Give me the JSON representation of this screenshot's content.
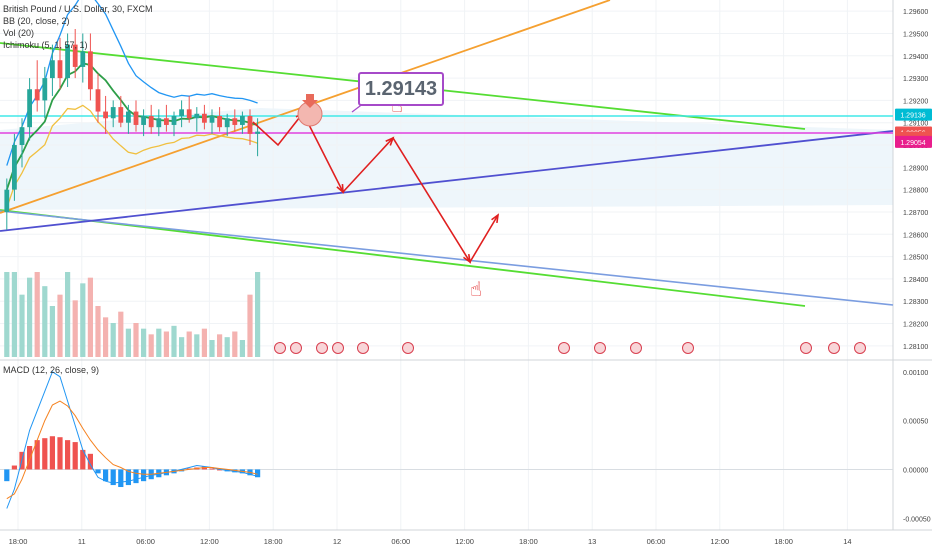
{
  "header": {
    "symbol_line": "British Pound / U.S. Dollar, 30, FXCM",
    "indicator_bb": "BB (20, close, 2)",
    "indicator_vol": "Vol (20)",
    "indicator_ichimoku": "Ichimoku (5, 1, 57, 1)"
  },
  "macd_header": "MACD (12, 26, close, 9)",
  "annotation": {
    "price_label": "1.29143"
  },
  "price_badges": [
    {
      "text": "1.29136",
      "color": "#00bcd4",
      "price": 1.29136
    },
    {
      "text": "1.29056",
      "color": "#ef5350",
      "price": 1.29056
    },
    {
      "text": "25:23",
      "color": "#ef5350",
      "price": 1.29032
    },
    {
      "text": "1.29054",
      "color": "#e91e8c",
      "price": 1.29014
    }
  ],
  "colors": {
    "bull": "#26a69a",
    "bear": "#ef5350",
    "bb": "#2196f3",
    "ichimoku": "#2e9e48",
    "ichimoku_base": "#f0c040",
    "trend_green": "#55dd33",
    "trend_orange": "#f5a030",
    "trend_blue": "#5050d0",
    "trend_lightblue": "#7b9de0",
    "support": "#e040e0",
    "resistance": "#40e8e8",
    "arrow": "#e02020",
    "macd_line": "#2196f3",
    "signal_line": "#f58220"
  },
  "chart_data": [
    {
      "type": "candlestick",
      "title": "British Pound / U.S. Dollar, 30, FXCM",
      "y_ticks": [
        "1.29600",
        "1.29500",
        "1.29400",
        "1.29300",
        "1.29200",
        "1.29100",
        "1.29000",
        "1.28900",
        "1.28800",
        "1.28700",
        "1.28600",
        "1.28500",
        "1.28400",
        "1.28300",
        "1.28200",
        "1.28100"
      ],
      "ylim": [
        1.2805,
        1.2965
      ],
      "x_ticks": [
        "18:00",
        "11",
        "06:00",
        "12:00",
        "18:00",
        "12",
        "06:00",
        "12:00",
        "18:00",
        "13",
        "06:00",
        "12:00",
        "18:00",
        "14"
      ],
      "candles": [
        [
          1.287,
          1.2885,
          1.2862,
          1.288
        ],
        [
          1.288,
          1.2905,
          1.2875,
          1.29
        ],
        [
          1.29,
          1.2912,
          1.289,
          1.2908
        ],
        [
          1.2908,
          1.293,
          1.2902,
          1.2925
        ],
        [
          1.2925,
          1.2938,
          1.2915,
          1.292
        ],
        [
          1.292,
          1.2935,
          1.2912,
          1.293
        ],
        [
          1.293,
          1.2945,
          1.2922,
          1.2938
        ],
        [
          1.2938,
          1.2948,
          1.2925,
          1.293
        ],
        [
          1.293,
          1.295,
          1.2926,
          1.2945
        ],
        [
          1.2945,
          1.2952,
          1.293,
          1.2935
        ],
        [
          1.2935,
          1.295,
          1.2928,
          1.2942
        ],
        [
          1.2942,
          1.295,
          1.292,
          1.2925
        ],
        [
          1.2925,
          1.2932,
          1.291,
          1.2915
        ],
        [
          1.2915,
          1.2922,
          1.2905,
          1.2912
        ],
        [
          1.2912,
          1.292,
          1.2908,
          1.2917
        ],
        [
          1.2917,
          1.2922,
          1.2908,
          1.291
        ],
        [
          1.291,
          1.2918,
          1.2905,
          1.2915
        ],
        [
          1.2915,
          1.292,
          1.2906,
          1.2909
        ],
        [
          1.2909,
          1.2916,
          1.2904,
          1.2913
        ],
        [
          1.2913,
          1.2918,
          1.2905,
          1.2908
        ],
        [
          1.2908,
          1.2916,
          1.2904,
          1.2912
        ],
        [
          1.2912,
          1.2918,
          1.2906,
          1.2909
        ],
        [
          1.2909,
          1.2915,
          1.2904,
          1.2913
        ],
        [
          1.2913,
          1.292,
          1.2908,
          1.2916
        ],
        [
          1.2916,
          1.2922,
          1.291,
          1.2912
        ],
        [
          1.2912,
          1.2917,
          1.2906,
          1.2914
        ],
        [
          1.2914,
          1.2918,
          1.2907,
          1.291
        ],
        [
          1.291,
          1.2916,
          1.2905,
          1.2913
        ],
        [
          1.2913,
          1.2917,
          1.2906,
          1.2908
        ],
        [
          1.2908,
          1.2914,
          1.2904,
          1.2912
        ],
        [
          1.2912,
          1.2916,
          1.2906,
          1.2909
        ],
        [
          1.2909,
          1.2915,
          1.2905,
          1.2913
        ],
        [
          1.2913,
          1.2916,
          1.29,
          1.2905
        ],
        [
          1.2905,
          1.2912,
          1.2895,
          1.2906
        ]
      ],
      "volume": [
        30,
        30,
        22,
        28,
        30,
        25,
        18,
        22,
        30,
        20,
        26,
        28,
        18,
        14,
        12,
        16,
        10,
        12,
        10,
        8,
        10,
        9,
        11,
        7,
        9,
        8,
        10,
        6,
        8,
        7,
        9,
        6,
        22,
        30
      ]
    },
    {
      "type": "line",
      "title": "MACD (12, 26, close, 9)",
      "y_ticks": [
        "0.00100",
        "0.00050",
        "0.00000",
        "-0.00050"
      ],
      "ylim": [
        -0.00062,
        0.0011
      ],
      "histogram": [
        -0.00012,
        4e-05,
        0.00018,
        0.00024,
        0.0003,
        0.00032,
        0.00034,
        0.00033,
        0.0003,
        0.00028,
        0.0002,
        0.00016,
        -4e-05,
        -0.00012,
        -0.00016,
        -0.00018,
        -0.00016,
        -0.00014,
        -0.00012,
        -0.0001,
        -8e-05,
        -6e-05,
        -4e-05,
        -2e-05,
        1e-05,
        2e-05,
        3e-05,
        1e-05,
        0.0,
        -2e-05,
        -3e-05,
        -4e-05,
        -6e-05,
        -8e-05
      ],
      "series": [
        {
          "values": [
            -0.0004,
            -0.0002,
            0.0001,
            0.0004,
            0.0006,
            0.0008,
            0.001,
            0.00095,
            0.0007,
            0.00045,
            0.0002,
            5e-05,
            -8e-05,
            -0.00012,
            -0.00014,
            -0.00013,
            -0.00012,
            -0.0001,
            -8e-05,
            -6e-05,
            -5e-05,
            -3e-05,
            -2e-05,
            0.0,
            2e-05,
            4e-05,
            3e-05,
            2e-05,
            0.0,
            -1e-05,
            -2e-05,
            -3e-05,
            -5e-05,
            -7e-05
          ]
        },
        {
          "values": [
            -0.0003,
            -0.00025,
            -0.0001,
            0.0001,
            0.0003,
            0.0005,
            0.00066,
            0.0007,
            0.00065,
            0.00055,
            0.00042,
            0.0003,
            0.0002,
            0.00012,
            5e-05,
            2e-05,
            -2e-05,
            -4e-05,
            -5e-05,
            -5e-05,
            -4e-05,
            -3e-05,
            -2e-05,
            -1e-05,
            0.0,
            1e-05,
            2e-05,
            2e-05,
            1e-05,
            0.0,
            -1e-05,
            -2e-05,
            -3e-05,
            -5e-05
          ]
        }
      ]
    }
  ]
}
